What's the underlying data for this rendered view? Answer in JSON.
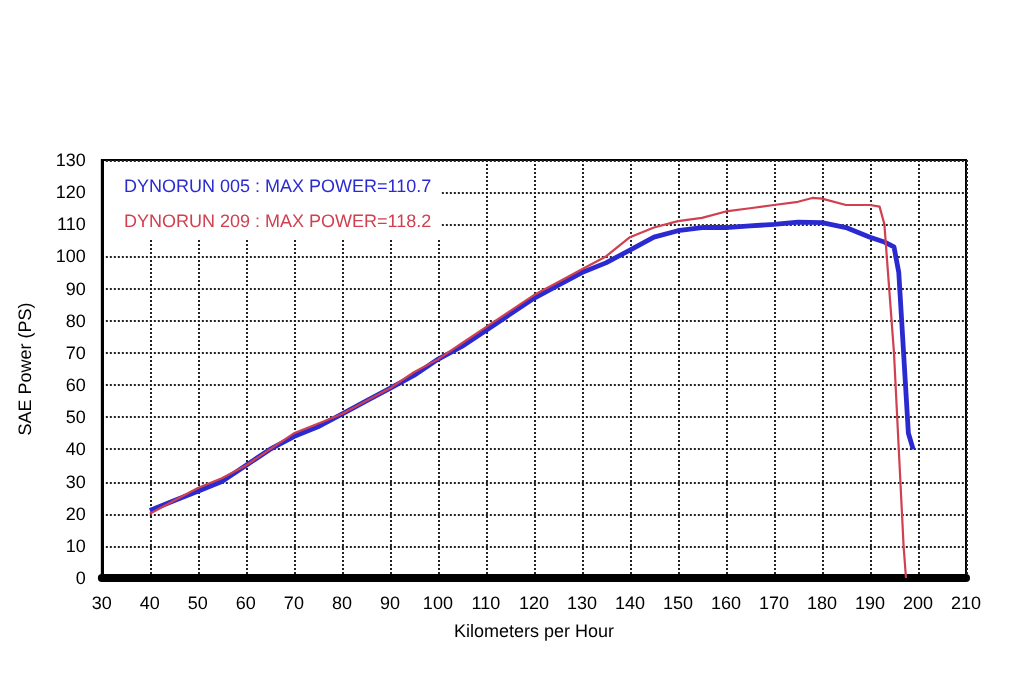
{
  "chart_data": {
    "type": "line",
    "xlabel": "Kilometers per Hour",
    "ylabel": "SAE Power (PS)",
    "xlim": [
      30,
      210
    ],
    "xticks": [
      30,
      40,
      50,
      60,
      70,
      80,
      90,
      100,
      110,
      120,
      130,
      140,
      150,
      160,
      170,
      180,
      190,
      200,
      210
    ],
    "ylim": [
      0,
      130
    ],
    "yticks": [
      0,
      10,
      20,
      30,
      40,
      50,
      60,
      70,
      80,
      90,
      100,
      110,
      120,
      130
    ],
    "grid": true,
    "legend": "top left",
    "marker": "none",
    "line_style": "solid",
    "series": [
      {
        "name": "DYNORUN 005 : MAX POWER=110.7",
        "color": "#2a2ad0",
        "x": [
          40,
          45,
          50,
          55,
          60,
          65,
          70,
          75,
          80,
          85,
          90,
          95,
          100,
          105,
          110,
          115,
          120,
          125,
          130,
          135,
          140,
          145,
          150,
          155,
          160,
          165,
          170,
          175,
          180,
          185,
          190,
          193,
          195,
          196,
          197,
          198,
          199
        ],
        "values": [
          21,
          24,
          27,
          30,
          35,
          40,
          44,
          47,
          51,
          55,
          59,
          63,
          68,
          72,
          77,
          82,
          87,
          91,
          95,
          98,
          102,
          106,
          108,
          109,
          109,
          109.5,
          110,
          110.7,
          110.5,
          109,
          106,
          104.5,
          103,
          95,
          70,
          45,
          40
        ]
      },
      {
        "name": "DYNORUN 209 : MAX POWER=118.2",
        "color": "#d04050",
        "x": [
          40,
          45,
          50,
          55,
          60,
          65,
          70,
          75,
          80,
          85,
          90,
          95,
          100,
          105,
          110,
          115,
          120,
          125,
          130,
          135,
          140,
          145,
          150,
          155,
          160,
          165,
          170,
          175,
          178,
          180,
          185,
          190,
          192,
          193,
          194,
          195,
          196,
          197,
          197.5
        ],
        "values": [
          20,
          24,
          28,
          31,
          35,
          40,
          45,
          48,
          51,
          55,
          59,
          64,
          68,
          73,
          78,
          83,
          88,
          92,
          96,
          100,
          106,
          109,
          111,
          112,
          114,
          115,
          116,
          117,
          118.2,
          118,
          116,
          116,
          115.5,
          110,
          90,
          70,
          40,
          10,
          0
        ]
      }
    ]
  }
}
